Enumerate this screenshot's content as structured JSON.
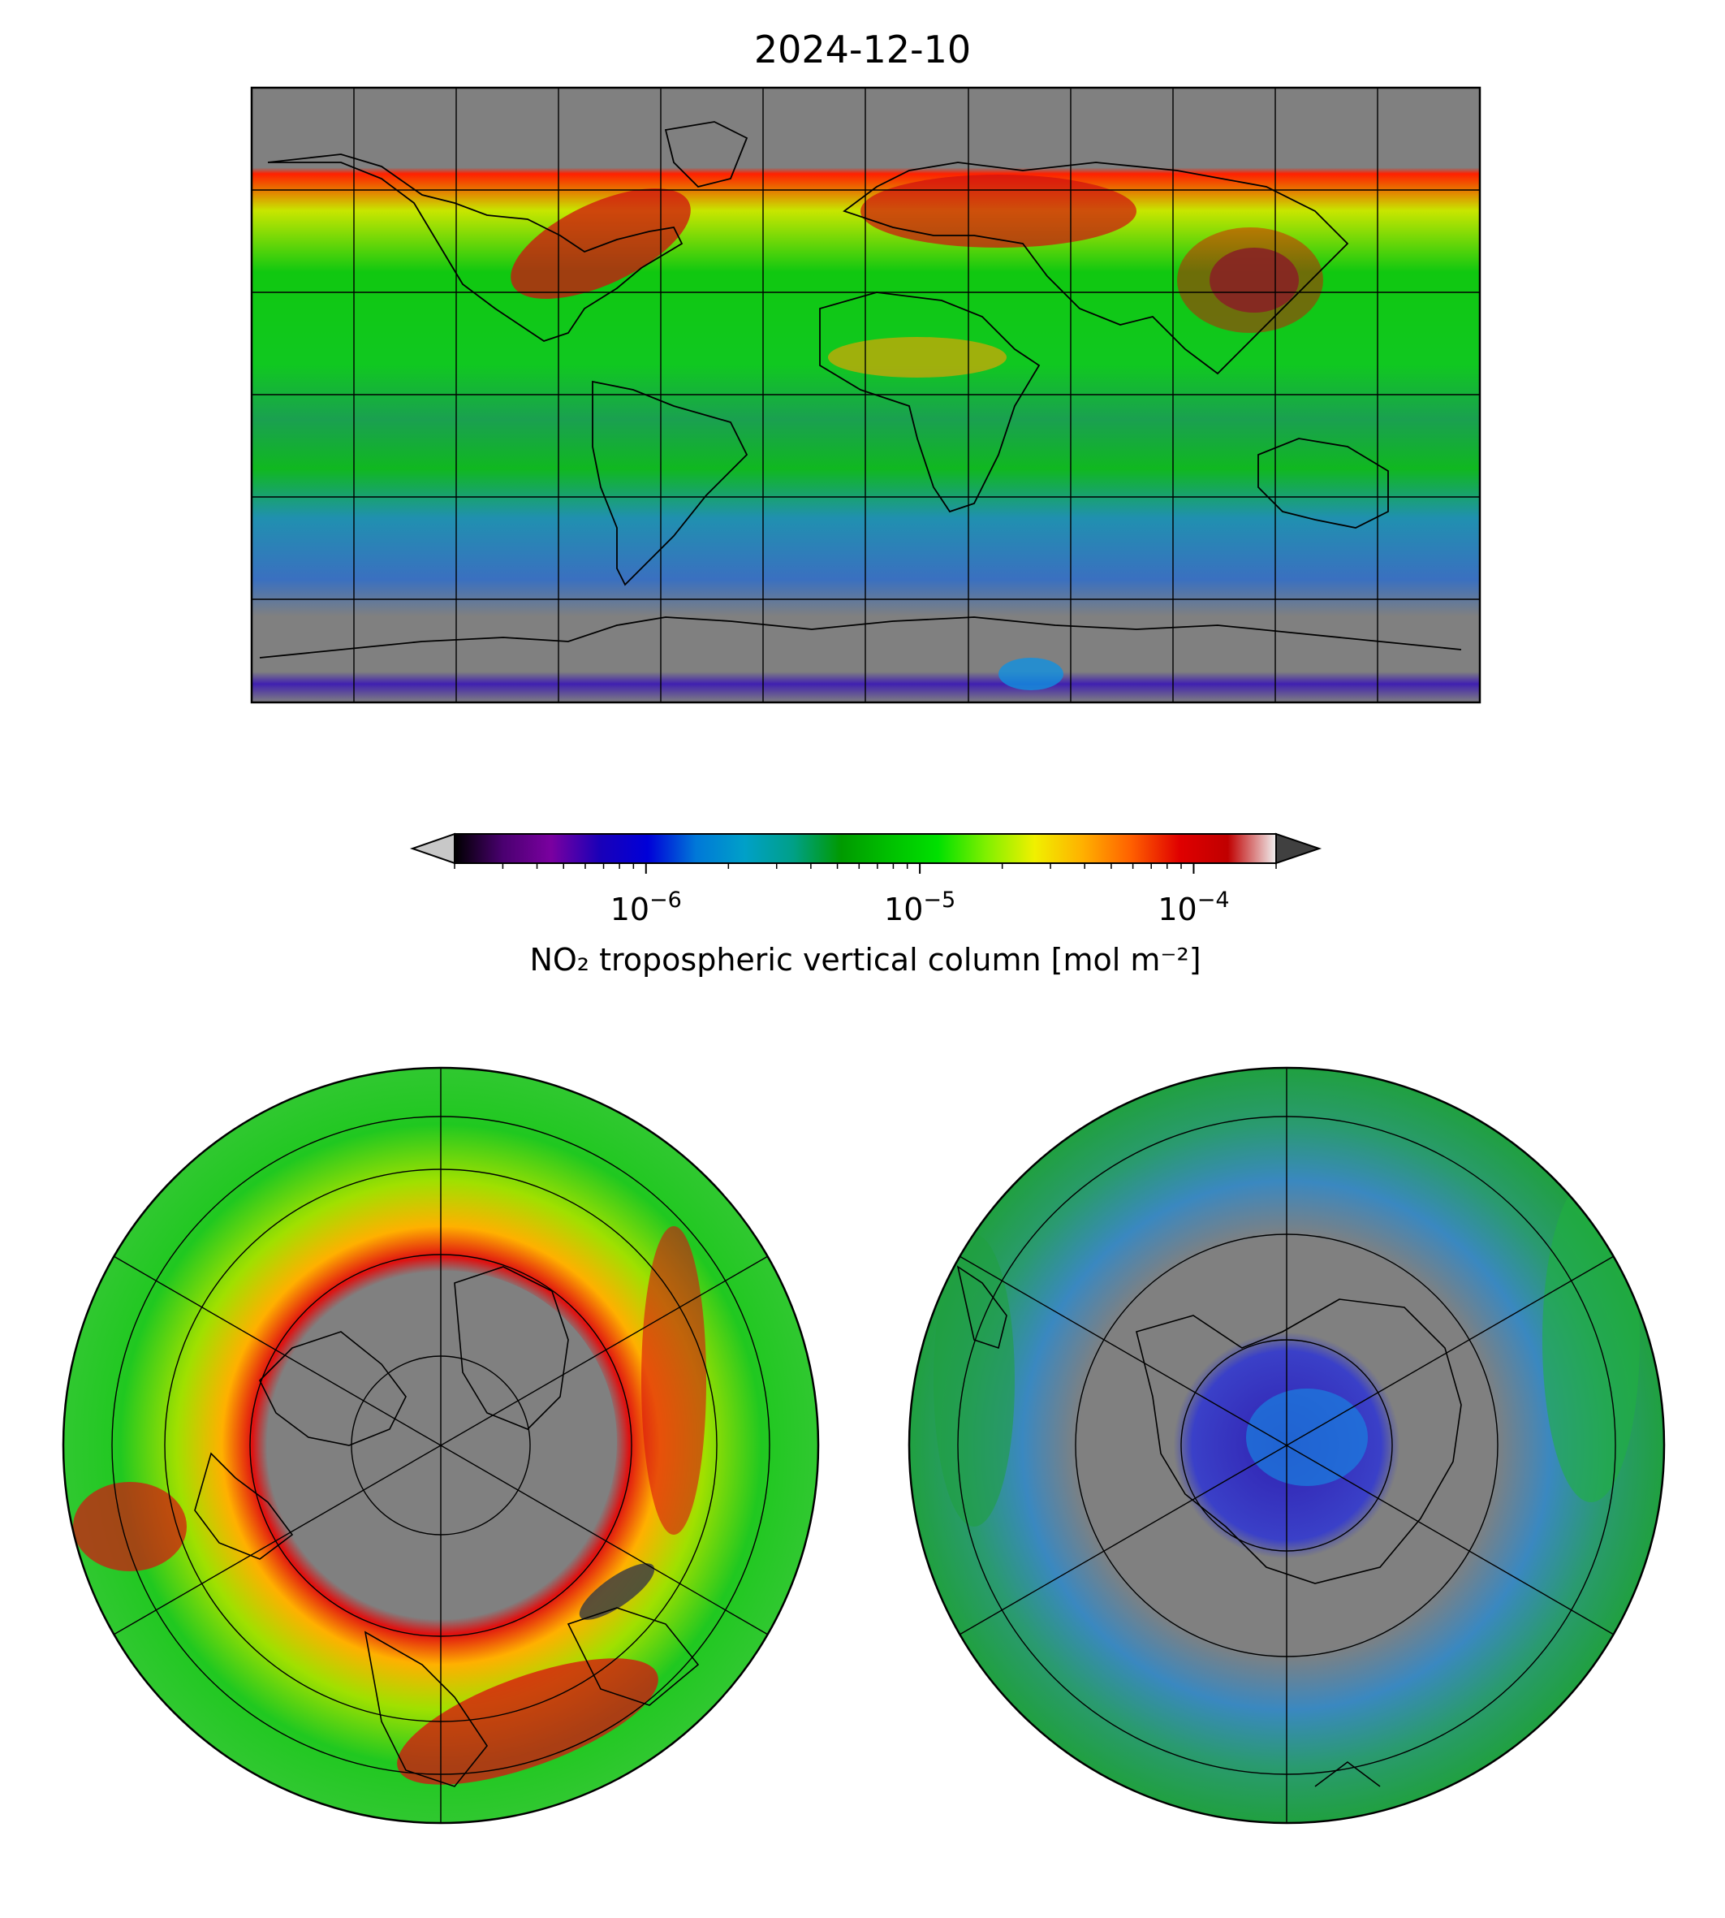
{
  "figure": {
    "title": "2024-12-10"
  },
  "colorbar": {
    "label": "NO₂ tropospheric vertical column [mol m⁻²]",
    "scale": "log",
    "range": [
      2e-07,
      0.0002
    ],
    "extend": "both",
    "ticks": [
      {
        "value": 1e-06,
        "base": "10",
        "exponent": "−6"
      },
      {
        "value": 1e-05,
        "base": "10",
        "exponent": "−5"
      },
      {
        "value": 0.0001,
        "base": "10",
        "exponent": "−4"
      }
    ],
    "under_color": "#c8c8c8",
    "over_color": "#404040",
    "stops": [
      "#000000",
      "#4a0070",
      "#7a00a0",
      "#1a00b8",
      "#0000d8",
      "#0078d8",
      "#00a0c8",
      "#00a088",
      "#009a00",
      "#00c000",
      "#00e000",
      "#80f000",
      "#f0f000",
      "#ffb000",
      "#ff6000",
      "#e00000",
      "#c00000",
      "#f0f0f0"
    ]
  },
  "maps": {
    "global": {
      "projection": "plate carree",
      "background": "#808080"
    },
    "north_polar": {
      "projection": "north polar stereographic",
      "background": "#808080"
    },
    "south_polar": {
      "projection": "south polar stereographic",
      "background": "#808080"
    }
  }
}
